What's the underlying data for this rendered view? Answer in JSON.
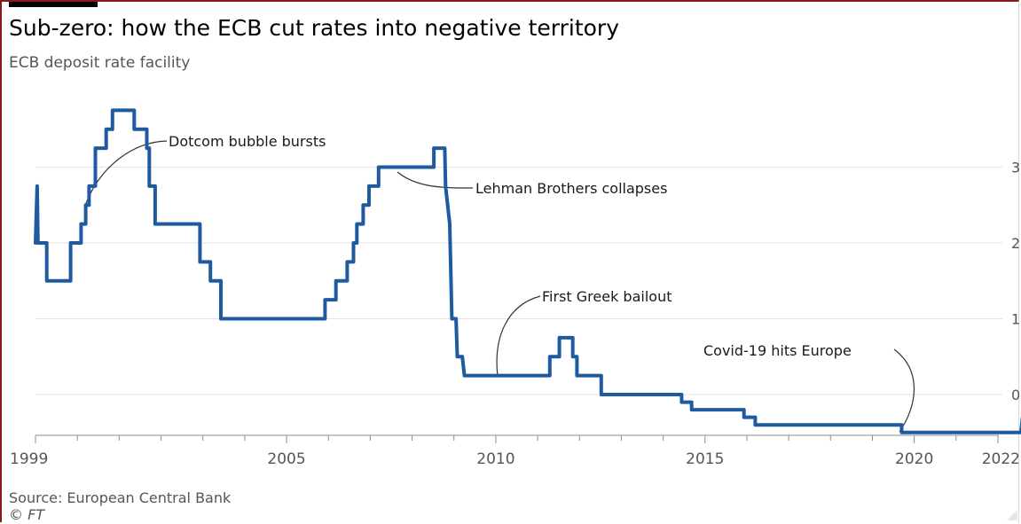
{
  "chart_data": {
    "type": "line",
    "title": "Sub-zero: how the ECB cut rates into negative territory",
    "subtitle": "ECB deposit rate facility",
    "xlabel": "",
    "ylabel": "",
    "x_ticks": [
      "1999",
      "2005",
      "2010",
      "2015",
      "2020",
      "2022"
    ],
    "y_ticks": [
      {
        "value": 3,
        "label": "3"
      },
      {
        "value": 2,
        "label": "2"
      },
      {
        "value": 1,
        "label": "1"
      },
      {
        "value": 0,
        "label": "0"
      }
    ],
    "xlim": [
      1999,
      2022
    ],
    "ylim": [
      -0.5,
      3.75
    ],
    "grid": true,
    "series": [
      {
        "color": "#1f5a9e",
        "points": [
          [
            1999.0,
            2.0
          ],
          [
            1999.04,
            2.75
          ],
          [
            1999.06,
            2.0
          ],
          [
            1999.27,
            2.0
          ],
          [
            1999.27,
            1.5
          ],
          [
            1999.84,
            1.5
          ],
          [
            1999.84,
            2.0
          ],
          [
            2000.09,
            2.0
          ],
          [
            2000.09,
            2.25
          ],
          [
            2000.2,
            2.25
          ],
          [
            2000.2,
            2.5
          ],
          [
            2000.28,
            2.5
          ],
          [
            2000.28,
            2.75
          ],
          [
            2000.43,
            2.75
          ],
          [
            2000.43,
            3.25
          ],
          [
            2000.69,
            3.25
          ],
          [
            2000.69,
            3.5
          ],
          [
            2000.84,
            3.5
          ],
          [
            2000.84,
            3.75
          ],
          [
            2001.36,
            3.75
          ],
          [
            2001.36,
            3.5
          ],
          [
            2001.66,
            3.5
          ],
          [
            2001.66,
            3.25
          ],
          [
            2001.72,
            3.25
          ],
          [
            2001.72,
            2.75
          ],
          [
            2001.86,
            2.75
          ],
          [
            2001.86,
            2.25
          ],
          [
            2002.93,
            2.25
          ],
          [
            2002.93,
            1.75
          ],
          [
            2003.18,
            1.75
          ],
          [
            2003.18,
            1.5
          ],
          [
            2003.43,
            1.5
          ],
          [
            2003.43,
            1.0
          ],
          [
            2005.92,
            1.0
          ],
          [
            2005.92,
            1.25
          ],
          [
            2006.18,
            1.25
          ],
          [
            2006.18,
            1.5
          ],
          [
            2006.45,
            1.5
          ],
          [
            2006.45,
            1.75
          ],
          [
            2006.6,
            1.75
          ],
          [
            2006.6,
            2.0
          ],
          [
            2006.68,
            2.0
          ],
          [
            2006.68,
            2.25
          ],
          [
            2006.83,
            2.25
          ],
          [
            2006.83,
            2.5
          ],
          [
            2006.97,
            2.5
          ],
          [
            2006.97,
            2.75
          ],
          [
            2007.2,
            2.75
          ],
          [
            2007.2,
            3.0
          ],
          [
            2008.52,
            3.0
          ],
          [
            2008.52,
            3.25
          ],
          [
            2008.78,
            3.25
          ],
          [
            2008.8,
            2.75
          ],
          [
            2008.9,
            2.25
          ],
          [
            2008.95,
            1.0
          ],
          [
            2009.05,
            1.0
          ],
          [
            2009.08,
            0.5
          ],
          [
            2009.2,
            0.5
          ],
          [
            2009.25,
            0.25
          ],
          [
            2011.29,
            0.25
          ],
          [
            2011.29,
            0.5
          ],
          [
            2011.52,
            0.5
          ],
          [
            2011.52,
            0.75
          ],
          [
            2011.84,
            0.75
          ],
          [
            2011.84,
            0.5
          ],
          [
            2011.94,
            0.5
          ],
          [
            2011.94,
            0.25
          ],
          [
            2012.52,
            0.25
          ],
          [
            2012.52,
            0.0
          ],
          [
            2014.44,
            0.0
          ],
          [
            2014.44,
            -0.1
          ],
          [
            2014.68,
            -0.1
          ],
          [
            2014.68,
            -0.2
          ],
          [
            2015.93,
            -0.2
          ],
          [
            2015.93,
            -0.3
          ],
          [
            2016.2,
            -0.3
          ],
          [
            2016.2,
            -0.4
          ],
          [
            2019.7,
            -0.4
          ],
          [
            2019.7,
            -0.5
          ],
          [
            2022.55,
            -0.5
          ],
          [
            2022.6,
            -0.25
          ],
          [
            2022.7,
            0.0
          ]
        ]
      }
    ],
    "annotations": [
      {
        "text": "Dotcom bubble bursts"
      },
      {
        "text": "Lehman Brothers collapses"
      },
      {
        "text": "First Greek bailout"
      },
      {
        "text": "Covid-19 hits Europe"
      }
    ]
  },
  "footer": {
    "source": "Source: European Central Bank",
    "copyright": "© FT"
  }
}
